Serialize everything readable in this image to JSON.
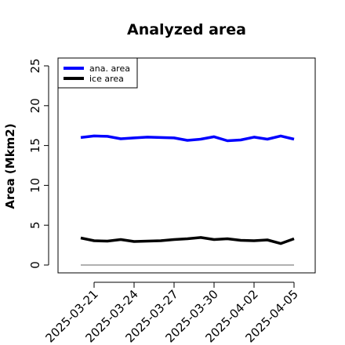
{
  "chart_data": {
    "type": "line",
    "title": "Analyzed area",
    "xlabel": "",
    "ylabel": "Area (Mkm2)",
    "ylim": [
      0,
      25
    ],
    "yticks": [
      "0",
      "5",
      "10",
      "15",
      "20",
      "25"
    ],
    "xlim_days": [
      0,
      15
    ],
    "x": [
      "2025-03-20",
      "2025-03-21",
      "2025-03-22",
      "2025-03-23",
      "2025-03-24",
      "2025-03-25",
      "2025-03-26",
      "2025-03-27",
      "2025-03-28",
      "2025-03-29",
      "2025-03-30",
      "2025-03-31",
      "2025-04-01",
      "2025-04-02",
      "2025-04-03",
      "2025-04-04",
      "2025-04-05"
    ],
    "xtick_labels": [
      {
        "label": "2025-03-21",
        "color": "#000000"
      },
      {
        "label": "2025-03-24",
        "color": "#000000"
      },
      {
        "label": "2025-03-27",
        "color": "#228B22"
      },
      {
        "label": "2025-03-30",
        "color": "#000000"
      },
      {
        "label": "2025-04-02",
        "color": "#000000"
      },
      {
        "label": "2025-04-05",
        "color": "#000000"
      }
    ],
    "series": [
      {
        "name": "ana. area",
        "color": "#0000ff",
        "values": [
          16.0,
          16.2,
          16.15,
          15.85,
          15.95,
          16.05,
          16.0,
          15.95,
          15.65,
          15.8,
          16.1,
          15.6,
          15.7,
          16.05,
          15.8,
          16.2,
          15.8
        ]
      },
      {
        "name": "ice area",
        "color": "#000000",
        "values": [
          3.4,
          3.05,
          3.0,
          3.2,
          2.95,
          3.0,
          3.05,
          3.2,
          3.3,
          3.45,
          3.2,
          3.3,
          3.1,
          3.05,
          3.15,
          2.7,
          3.3
        ]
      }
    ],
    "reference_line": {
      "value": 0,
      "color": "#808080"
    },
    "legend_position": "top-left",
    "grid": false
  }
}
